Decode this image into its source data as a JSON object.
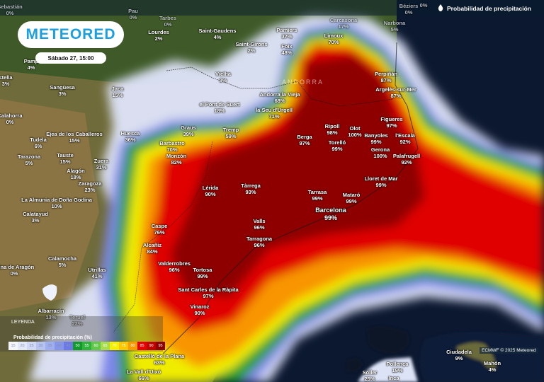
{
  "header": {
    "brand": "METEORED",
    "date_label": "Sábado 27, 15:00",
    "title": "Probabilidad de precipitación",
    "title_icon": "drop-icon"
  },
  "region_label": "ANDORRA",
  "cities": [
    {
      "name": "Sebastián",
      "value": "0%"
    },
    {
      "name": "Pau",
      "value": "0%"
    },
    {
      "name": "Tarbes",
      "value": "0%"
    },
    {
      "name": "Lourdes",
      "value": "2%"
    },
    {
      "name": "Saint-Gaudens",
      "value": "4%"
    },
    {
      "name": "Saint-Girons",
      "value": "2%"
    },
    {
      "name": "Pamp",
      "value": "4%"
    },
    {
      "name": "stella",
      "value": "3%"
    },
    {
      "name": "Sangüesa",
      "value": "3%"
    },
    {
      "name": "Jaca",
      "value": "15%"
    },
    {
      "name": "Vielha",
      "value": "8%"
    },
    {
      "name": "Calahorra",
      "value": "0%"
    },
    {
      "name": "el Pont de Suert",
      "value": "18%"
    },
    {
      "name": "Ejea de los Caballeros",
      "value": "15%"
    },
    {
      "name": "Huesca",
      "value": "36%"
    },
    {
      "name": "Graus",
      "value": "39%"
    },
    {
      "name": "Tremp",
      "value": "59%"
    },
    {
      "name": "Tudela",
      "value": "6%"
    },
    {
      "name": "Barbastro",
      "value": "70%"
    },
    {
      "name": "Tarazona",
      "value": "5%"
    },
    {
      "name": "Tauste",
      "value": "15%"
    },
    {
      "name": "Monzón",
      "value": "82%"
    },
    {
      "name": "Zuera",
      "value": "31%"
    },
    {
      "name": "Alagón",
      "value": "18%"
    },
    {
      "name": "Zaragoza",
      "value": "23%"
    },
    {
      "name": "Lérida",
      "value": "90%"
    },
    {
      "name": "Tàrrega",
      "value": "93%"
    },
    {
      "name": "La Almunia de Doña Godina",
      "value": "10%"
    },
    {
      "name": "Calatayud",
      "value": "3%"
    },
    {
      "name": "Valls",
      "value": "96%"
    },
    {
      "name": "Caspe",
      "value": "76%"
    },
    {
      "name": "Tarragona",
      "value": "96%"
    },
    {
      "name": "Alcañiz",
      "value": "84%"
    },
    {
      "name": "Calamocha",
      "value": "5%"
    },
    {
      "name": "olina de Aragón",
      "value": "0%"
    },
    {
      "name": "Utrillas",
      "value": "41%"
    },
    {
      "name": "Valderrobres",
      "value": "96%"
    },
    {
      "name": "Tortosa",
      "value": "99%"
    },
    {
      "name": "Sant Carles de la Ràpita",
      "value": "97%"
    },
    {
      "name": "Vinaroz",
      "value": "90%"
    },
    {
      "name": "Albarracín",
      "value": "13%"
    },
    {
      "name": "Teruel",
      "value": "22%"
    },
    {
      "name": "Castelló de la Plana",
      "value": "63%"
    },
    {
      "name": "La Vall d'Uixó",
      "value": "66%"
    },
    {
      "name": "Carcasona",
      "value": "17%"
    },
    {
      "name": "Béziers",
      "value": "0%"
    },
    {
      "name": "",
      "value": "0%"
    },
    {
      "name": "Narbona",
      "value": "5%"
    },
    {
      "name": "Pamiers",
      "value": "37%"
    },
    {
      "name": "Limoux",
      "value": "70%"
    },
    {
      "name": "Foix",
      "value": "48%"
    },
    {
      "name": "Andorra la Vieja",
      "value": "68%"
    },
    {
      "name": "la Seu d'Urgell",
      "value": "71%"
    },
    {
      "name": "Perpiñán",
      "value": "87%"
    },
    {
      "name": "Argelès-sur-Mer",
      "value": "87%"
    },
    {
      "name": "Figueres",
      "value": "97%"
    },
    {
      "name": "Ripoll",
      "value": "98%"
    },
    {
      "name": "Olot",
      "value": "100%"
    },
    {
      "name": "Berga",
      "value": "97%"
    },
    {
      "name": "Banyoles",
      "value": "99%"
    },
    {
      "name": "l'Escala",
      "value": "92%"
    },
    {
      "name": "Torelló",
      "value": "99%"
    },
    {
      "name": "Gerona",
      "value": "100%"
    },
    {
      "name": "Palafrugell",
      "value": "92%"
    },
    {
      "name": "Lloret de Mar",
      "value": "99%"
    },
    {
      "name": "Tarrasa",
      "value": "99%"
    },
    {
      "name": "Mataró",
      "value": "99%"
    },
    {
      "name": "Barcelona",
      "value": "99%"
    },
    {
      "name": "Ciudadela",
      "value": "9%"
    },
    {
      "name": "Mahón",
      "value": "4%"
    },
    {
      "name": "Pollença",
      "value": "19%"
    },
    {
      "name": "Sóller",
      "value": "25%"
    },
    {
      "name": "Inca",
      "value": ""
    }
  ],
  "legend": {
    "heading": "LEYENDA",
    "title": "Probabilidad de precipitación (%)",
    "steps": [
      {
        "label": "15",
        "color": "#f4f6fc"
      },
      {
        "label": "20",
        "color": "#e3e8f8"
      },
      {
        "label": "25",
        "color": "#cfd8f5"
      },
      {
        "label": "30",
        "color": "#b6c3f1"
      },
      {
        "label": "35",
        "color": "#9eaeee"
      },
      {
        "label": "40",
        "color": "#8595ea"
      },
      {
        "label": "45",
        "color": "#6b7ae6"
      },
      {
        "label": "50",
        "color": "#0f9a2a"
      },
      {
        "label": "55",
        "color": "#2fb33c"
      },
      {
        "label": "60",
        "color": "#62c84a"
      },
      {
        "label": "65",
        "color": "#a8dc4c"
      },
      {
        "label": "70",
        "color": "#f5f000"
      },
      {
        "label": "75",
        "color": "#fbc800"
      },
      {
        "label": "80",
        "color": "#fa9a00"
      },
      {
        "label": "85",
        "color": "#e60000"
      },
      {
        "label": "90",
        "color": "#c00000"
      },
      {
        "label": "95",
        "color": "#8e0000"
      }
    ]
  },
  "credit": "ECMWF © 2025 Meteored"
}
